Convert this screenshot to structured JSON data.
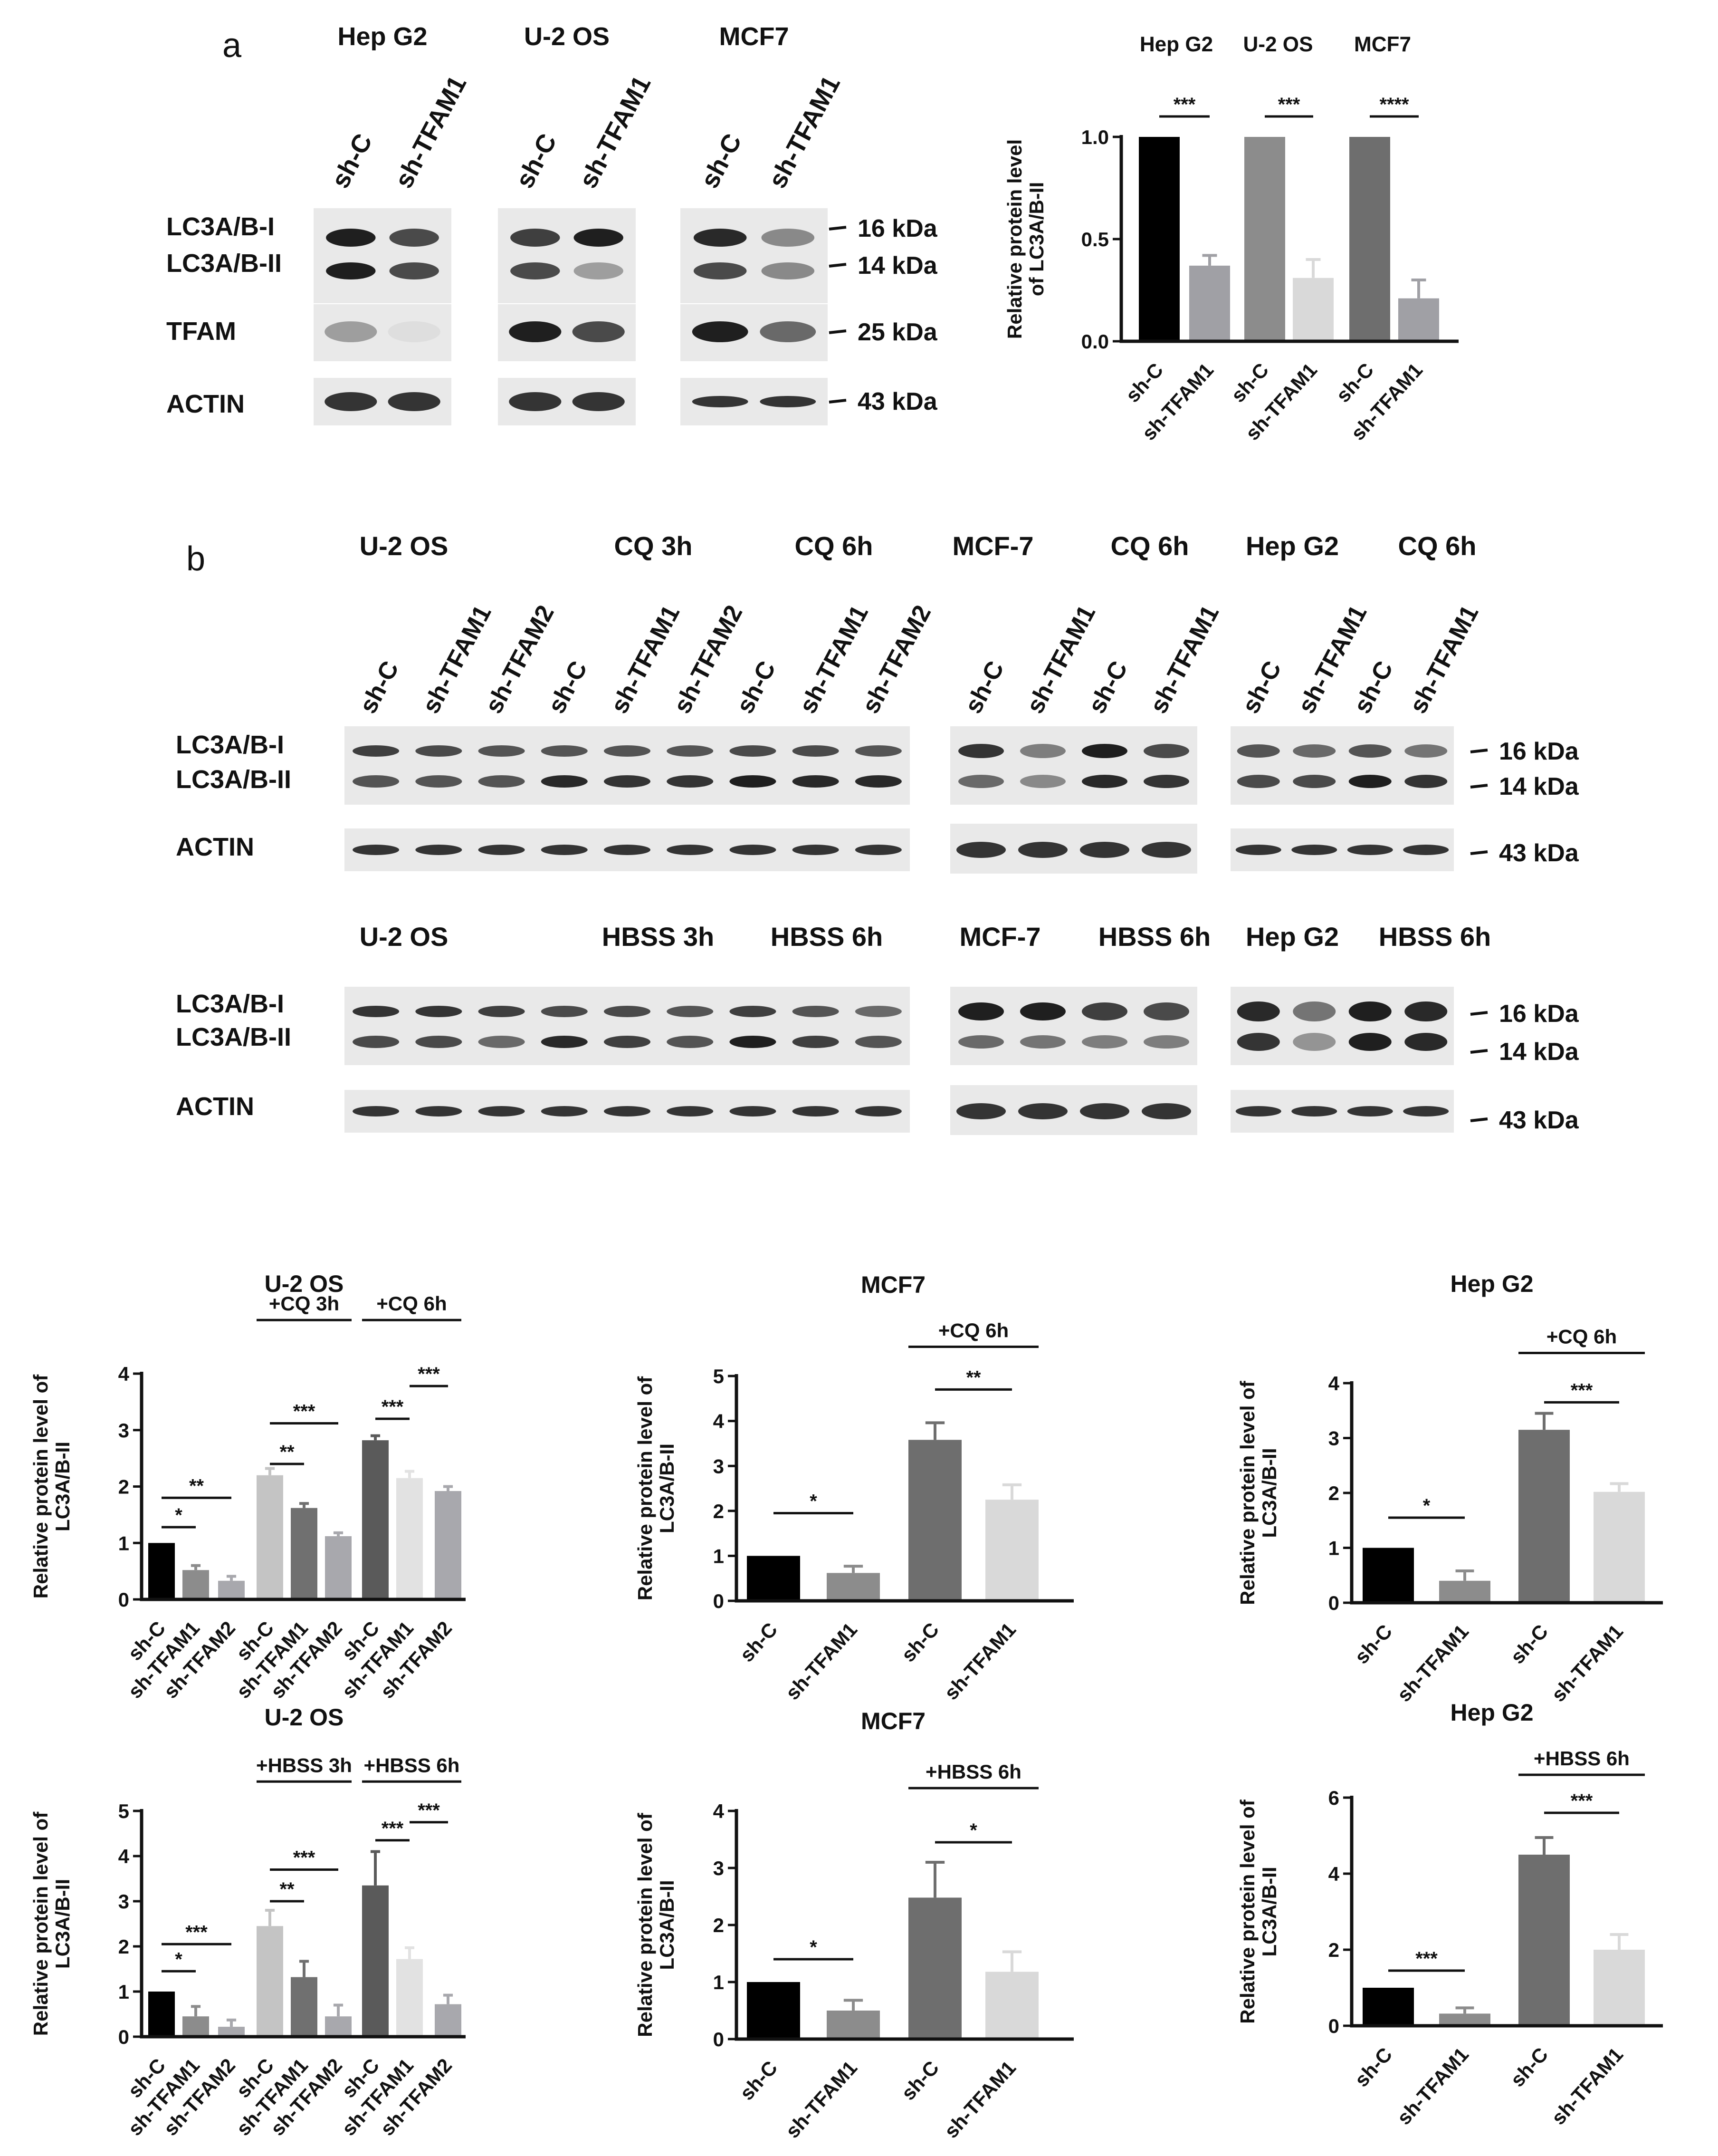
{
  "panel_a": {
    "letter": "a",
    "cell_lines": [
      "Hep G2",
      "U-2 OS",
      "MCF7"
    ],
    "lanes": [
      "sh-C",
      "sh-TFAM1"
    ],
    "row_labels": [
      "LC3A/B-I",
      "LC3A/B-II",
      "TFAM",
      "ACTIN"
    ],
    "markers": [
      "16 kDa",
      "14 kDa",
      "25 kDa",
      "43 kDa"
    ]
  },
  "panel_b": {
    "letter": "b",
    "top_headers": [
      "U-2 OS",
      "CQ 3h",
      "CQ 6h",
      "MCF-7",
      "CQ 6h",
      "Hep G2",
      "CQ 6h"
    ],
    "bottom_headers": [
      "U-2 OS",
      "HBSS 3h",
      "HBSS 6h",
      "MCF-7",
      "HBSS 6h",
      "Hep G2",
      "HBSS 6h"
    ],
    "lanes_uos": [
      "sh-C",
      "sh-TFAM1",
      "sh-TFAM2",
      "sh-C",
      "sh-TFAM1",
      "sh-TFAM2",
      "sh-C",
      "sh-TFAM1",
      "sh-TFAM2"
    ],
    "lanes_mcf": [
      "sh-C",
      "sh-TFAM1",
      "sh-C",
      "sh-TFAM1"
    ],
    "lanes_hep": [
      "sh-C",
      "sh-TFAM1",
      "sh-C",
      "sh-TFAM1"
    ],
    "row_labels": [
      "LC3A/B-I",
      "LC3A/B-II",
      "ACTIN"
    ],
    "markers": [
      "16 kDa",
      "14 kDa",
      "43 kDa"
    ]
  },
  "chart_data": [
    {
      "id": "a-bar",
      "type": "bar",
      "title": "",
      "group_labels": [
        "Hep G2",
        "U-2 OS",
        "MCF7"
      ],
      "ylabel": "Relative protein level of LC3A/B-II",
      "ylim": [
        0,
        1.0
      ],
      "yticks": [
        "0.0",
        "0.5",
        "1.0"
      ],
      "categories": [
        "sh-C",
        "sh-TFAM1",
        "sh-C",
        "sh-TFAM1",
        "sh-C",
        "sh-TFAM1"
      ],
      "values": [
        1.0,
        0.37,
        1.0,
        0.31,
        1.0,
        0.21
      ],
      "errors": [
        0,
        0.05,
        0,
        0.09,
        0,
        0.09
      ],
      "colors": [
        "#000000",
        "#a0a0a5",
        "#8c8c8c",
        "#d9d9d9",
        "#6e6e6e",
        "#a0a0a5"
      ],
      "significance": [
        "***",
        "***",
        "****"
      ]
    },
    {
      "id": "uos-cq",
      "type": "bar",
      "title": "U-2 OS",
      "group_labels": [
        "+CQ 3h",
        "+CQ 6h"
      ],
      "ylabel": "Relative protein level of LC3A/B-II",
      "ylim": [
        0,
        4
      ],
      "yticks": [
        "0",
        "1",
        "2",
        "3",
        "4"
      ],
      "categories": [
        "sh-C",
        "sh-TFAM1",
        "sh-TFAM2",
        "sh-C",
        "sh-TFAM1",
        "sh-TFAM2",
        "sh-C",
        "sh-TFAM1",
        "sh-TFAM2"
      ],
      "values": [
        1.0,
        0.52,
        0.33,
        2.2,
        1.62,
        1.12,
        2.82,
        2.15,
        1.92
      ],
      "errors": [
        0,
        0.08,
        0.08,
        0.12,
        0.08,
        0.06,
        0.08,
        0.12,
        0.08
      ],
      "colors": [
        "#000000",
        "#8c8c8c",
        "#a8a8ad",
        "#c4c4c4",
        "#707070",
        "#a8a8ad",
        "#5a5a5a",
        "#e2e2e2",
        "#a8a8ad"
      ],
      "significance": [
        "*",
        "**",
        "**",
        "***",
        "***",
        "***"
      ]
    },
    {
      "id": "mcf-cq",
      "type": "bar",
      "title": "MCF7",
      "group_labels": [
        "+CQ 6h"
      ],
      "ylabel": "Relative protein level of LC3A/B-II",
      "ylim": [
        0,
        5
      ],
      "yticks": [
        "0",
        "1",
        "2",
        "3",
        "4",
        "5"
      ],
      "categories": [
        "sh-C",
        "sh-TFAM1",
        "sh-C",
        "sh-TFAM1"
      ],
      "values": [
        1.0,
        0.62,
        3.58,
        2.25
      ],
      "errors": [
        0,
        0.15,
        0.38,
        0.33
      ],
      "colors": [
        "#000000",
        "#8c8c8c",
        "#6e6e6e",
        "#d9d9d9"
      ],
      "significance": [
        "*",
        "**"
      ]
    },
    {
      "id": "hep-cq",
      "type": "bar",
      "title": "Hep G2",
      "group_labels": [
        "+CQ 6h"
      ],
      "ylabel": "Relative protein level of LC3A/B-II",
      "ylim": [
        0,
        4
      ],
      "yticks": [
        "0",
        "1",
        "2",
        "3",
        "4"
      ],
      "categories": [
        "sh-C",
        "sh-TFAM1",
        "sh-C",
        "sh-TFAM1"
      ],
      "values": [
        1.0,
        0.4,
        3.15,
        2.02
      ],
      "errors": [
        0,
        0.18,
        0.3,
        0.15
      ],
      "colors": [
        "#000000",
        "#8c8c8c",
        "#6e6e6e",
        "#d9d9d9"
      ],
      "significance": [
        "*",
        "***"
      ]
    },
    {
      "id": "uos-hbss",
      "type": "bar",
      "title": "U-2 OS",
      "group_labels": [
        "+HBSS 3h",
        "+HBSS 6h"
      ],
      "ylabel": "Relative protein level of LC3A/B-II",
      "ylim": [
        0,
        5
      ],
      "yticks": [
        "0",
        "1",
        "2",
        "3",
        "4",
        "5"
      ],
      "categories": [
        "sh-C",
        "sh-TFAM1",
        "sh-TFAM2",
        "sh-C",
        "sh-TFAM1",
        "sh-TFAM2",
        "sh-C",
        "sh-TFAM1",
        "sh-TFAM2"
      ],
      "values": [
        1.0,
        0.45,
        0.22,
        2.45,
        1.32,
        0.45,
        3.35,
        1.72,
        0.72
      ],
      "errors": [
        0,
        0.22,
        0.15,
        0.35,
        0.35,
        0.25,
        0.75,
        0.25,
        0.2
      ],
      "colors": [
        "#000000",
        "#8c8c8c",
        "#a8a8ad",
        "#c4c4c4",
        "#707070",
        "#a8a8ad",
        "#5a5a5a",
        "#e2e2e2",
        "#a8a8ad"
      ],
      "significance": [
        "*",
        "***",
        "**",
        "***",
        "***",
        "***"
      ]
    },
    {
      "id": "mcf-hbss",
      "type": "bar",
      "title": "MCF7",
      "group_labels": [
        "+HBSS 6h"
      ],
      "ylabel": "Relative protein level of LC3A/B-II",
      "ylim": [
        0,
        4
      ],
      "yticks": [
        "0",
        "1",
        "2",
        "3",
        "4"
      ],
      "categories": [
        "sh-C",
        "sh-TFAM1",
        "sh-C",
        "sh-TFAM1"
      ],
      "values": [
        1.0,
        0.5,
        2.48,
        1.18
      ],
      "errors": [
        0,
        0.18,
        0.62,
        0.35
      ],
      "colors": [
        "#000000",
        "#8c8c8c",
        "#6e6e6e",
        "#d9d9d9"
      ],
      "significance": [
        "*",
        "*"
      ]
    },
    {
      "id": "hep-hbss",
      "type": "bar",
      "title": "Hep G2",
      "group_labels": [
        "+HBSS 6h"
      ],
      "ylabel": "Relative protein level of LC3A/B-II",
      "ylim": [
        0,
        6
      ],
      "yticks": [
        "0",
        "2",
        "4",
        "6"
      ],
      "categories": [
        "sh-C",
        "sh-TFAM1",
        "sh-C",
        "sh-TFAM1"
      ],
      "values": [
        1.0,
        0.32,
        4.5,
        2.0
      ],
      "errors": [
        0,
        0.15,
        0.45,
        0.4
      ],
      "colors": [
        "#000000",
        "#8c8c8c",
        "#6e6e6e",
        "#d9d9d9"
      ],
      "significance": [
        "***",
        "***"
      ]
    }
  ]
}
